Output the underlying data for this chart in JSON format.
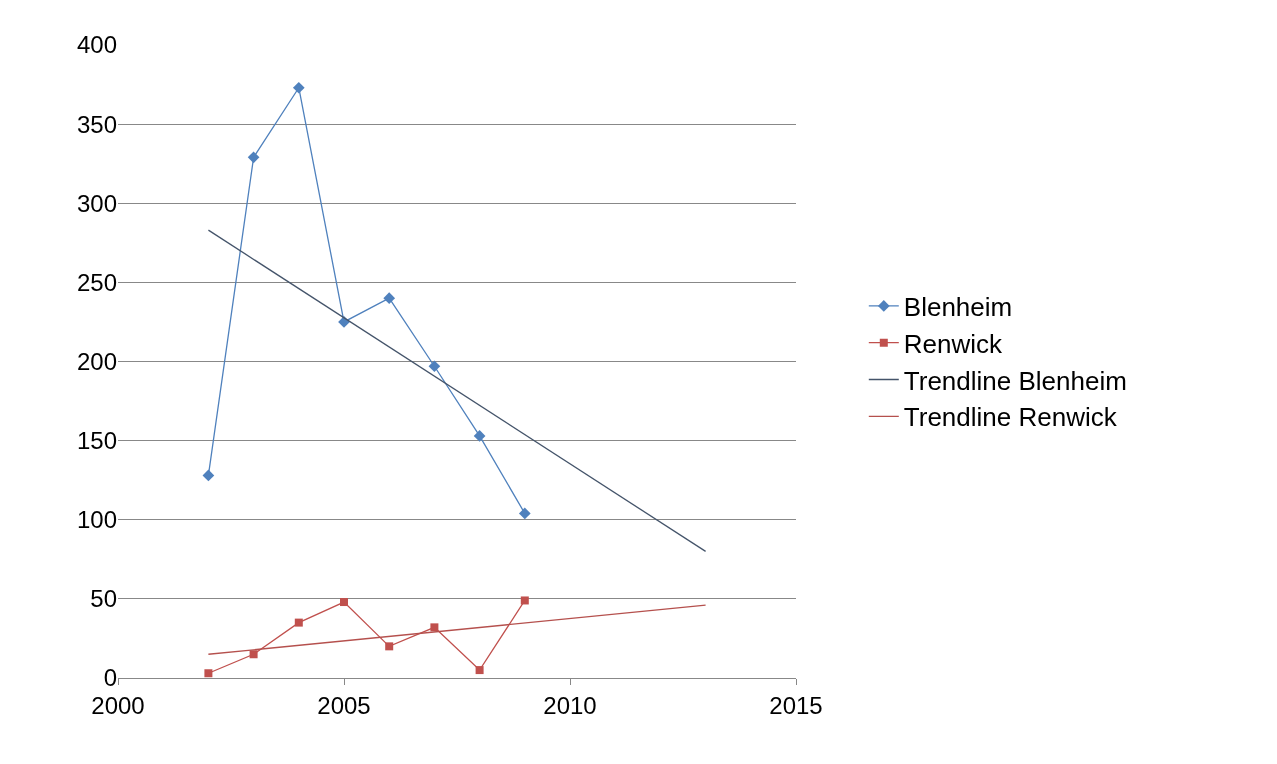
{
  "chart_data": {
    "type": "line",
    "xlim": [
      2000,
      2015
    ],
    "xticks": [
      2000,
      2005,
      2010,
      2015
    ],
    "ylim": [
      0,
      400
    ],
    "yticks": [
      0,
      50,
      100,
      150,
      200,
      250,
      300,
      350,
      400
    ],
    "grid": "y",
    "legend": "right",
    "line_style": "solid",
    "series": [
      {
        "name": "Blenheim",
        "color": "#4f81bd",
        "marker": "diamond",
        "x": [
          2002,
          2003,
          2004,
          2005,
          2006,
          2007,
          2008,
          2009
        ],
        "values": [
          128,
          329,
          373,
          225,
          240,
          197,
          153,
          104
        ]
      },
      {
        "name": "Renwick",
        "color": "#c0504d",
        "marker": "square",
        "x": [
          2002,
          2003,
          2004,
          2005,
          2006,
          2007,
          2008,
          2009
        ],
        "values": [
          3,
          15,
          35,
          48,
          20,
          32,
          5,
          49
        ]
      },
      {
        "name": "Trendline Blenheim",
        "color": "#44546a",
        "marker": "none",
        "x": [
          2002,
          2013
        ],
        "values": [
          283,
          80
        ]
      },
      {
        "name": "Trendline Renwick",
        "color": "#b5504d",
        "marker": "none",
        "x": [
          2002,
          2013
        ],
        "values": [
          15,
          46
        ]
      }
    ]
  }
}
